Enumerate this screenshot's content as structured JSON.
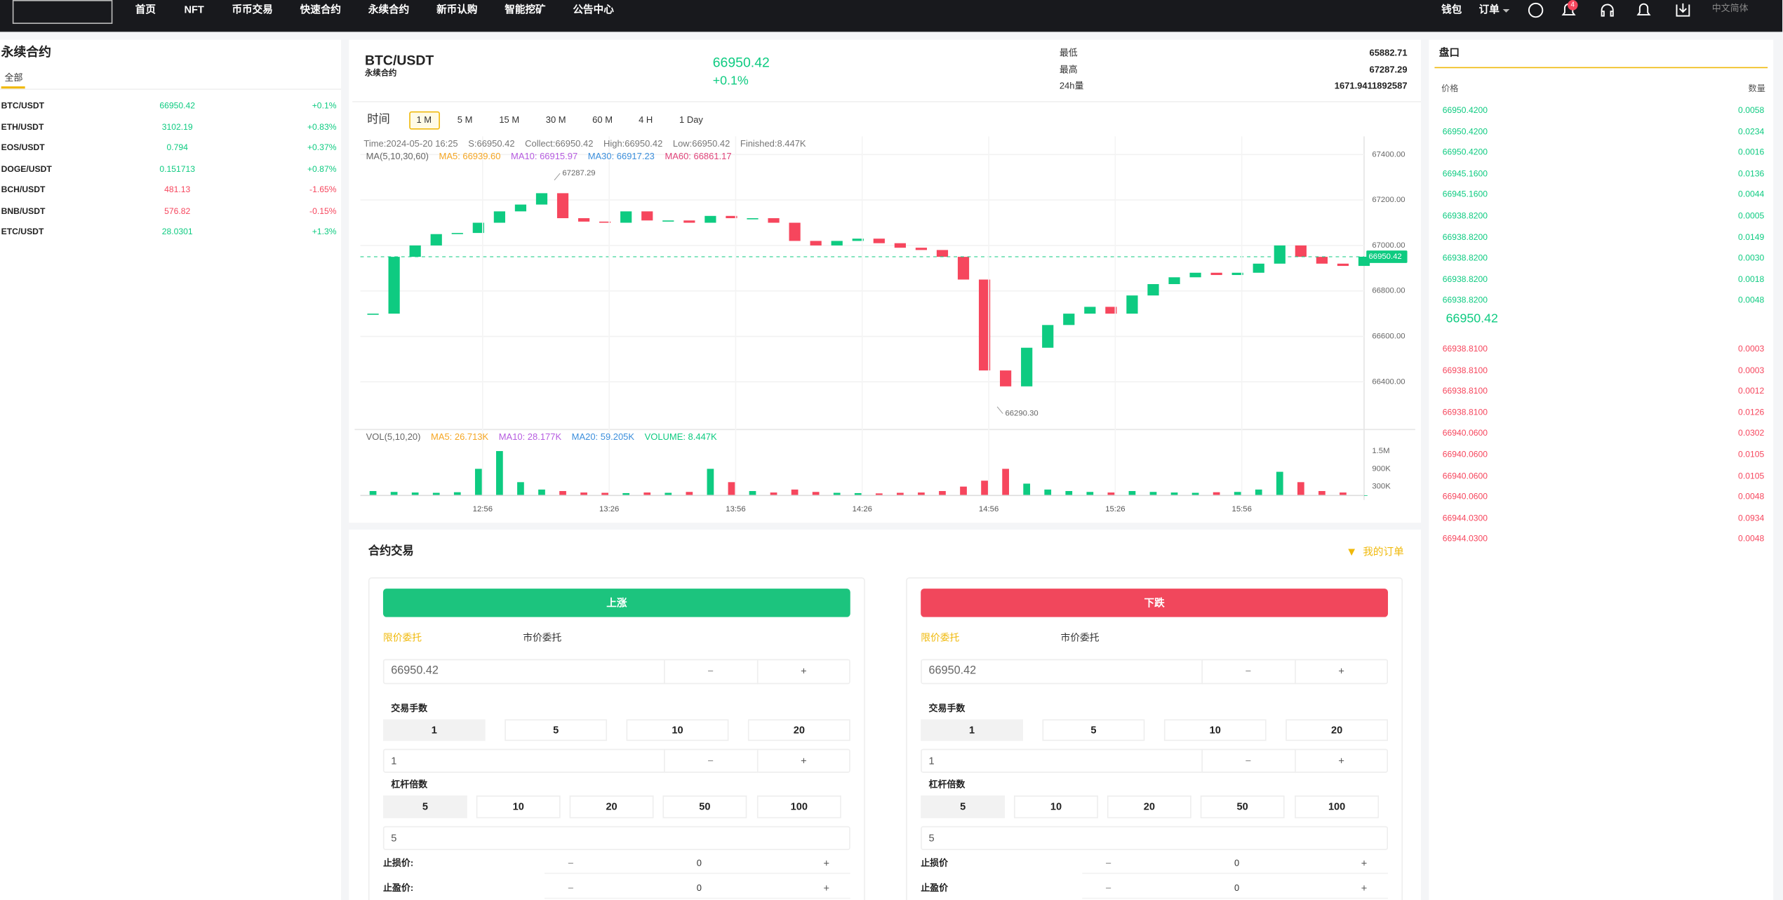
{
  "nav": {
    "items": [
      "首页",
      "NFT",
      "币币交易",
      "快速合约",
      "永续合约",
      "新币认购",
      "智能挖矿",
      "公告中心"
    ],
    "right": [
      "钱包",
      "订单"
    ],
    "badge": "4",
    "language": "中文简体"
  },
  "markets": {
    "title": "永续合约",
    "tab": "全部",
    "rows": [
      {
        "symbol": "BTC/USDT",
        "price": "66950.42",
        "change": "+0.1%"
      },
      {
        "symbol": "ETH/USDT",
        "price": "3102.19",
        "change": "+0.83%"
      },
      {
        "symbol": "EOS/USDT",
        "price": "0.794",
        "change": "+0.37%"
      },
      {
        "symbol": "DOGE/USDT",
        "price": "0.151713",
        "change": "+0.87%"
      },
      {
        "symbol": "BCH/USDT",
        "price": "481.13",
        "change": "-1.65%"
      },
      {
        "symbol": "BNB/USDT",
        "price": "576.82",
        "change": "-0.15%"
      },
      {
        "symbol": "ETC/USDT",
        "price": "28.0301",
        "change": "+1.3%"
      }
    ]
  },
  "ticker": {
    "symbol": "BTC/USDT",
    "subtitle": "永续合约",
    "price": "66950.42",
    "change": "+0.1%",
    "stats": [
      [
        "最低",
        "65882.71"
      ],
      [
        "最高",
        "67287.29"
      ],
      [
        "24h量",
        "1671.9411892587"
      ]
    ]
  },
  "intervals": {
    "items": [
      "时间",
      "1 M",
      "5 M",
      "15 M",
      "30 M",
      "60 M",
      "4 H",
      "1 Day"
    ],
    "selected": 1
  },
  "chart_data": [
    {
      "type": "candlestick",
      "info": [
        "Time:2024-05-20 16:25",
        "S:66950.42",
        "Collect:66950.42",
        "High:66950.42",
        "Low:66950.42",
        "Finished:8.447K"
      ],
      "legend": [
        {
          "text": "MA(5,10,30,60)",
          "color": "#666666"
        },
        {
          "text": "MA5: 66939.60",
          "color": "#f5a623"
        },
        {
          "text": "MA10: 66915.97",
          "color": "#b65ce0"
        },
        {
          "text": "MA30: 66917.23",
          "color": "#3c8fdc"
        },
        {
          "text": "MA60: 66861.17",
          "color": "#e0457b"
        }
      ],
      "x": [
        "12:30",
        "12:35",
        "12:40",
        "12:45",
        "12:50",
        "12:55",
        "13:00",
        "13:05",
        "13:10",
        "13:15",
        "13:20",
        "13:25",
        "13:30",
        "13:35",
        "13:40",
        "13:45",
        "13:50",
        "13:55",
        "14:00",
        "14:05",
        "14:10",
        "14:15",
        "14:20",
        "14:25",
        "14:30",
        "14:35",
        "14:40",
        "14:45",
        "14:50",
        "14:55",
        "15:00",
        "15:05",
        "15:10",
        "15:15",
        "15:20",
        "15:25",
        "15:30",
        "15:35",
        "15:40",
        "15:45",
        "15:50",
        "15:55",
        "16:00",
        "16:05",
        "16:10",
        "16:15",
        "16:20",
        "16:25"
      ],
      "xlim": [
        "12:27",
        "16:25"
      ],
      "series": [
        {
          "name": "BTC/USDT",
          "up_color": "#0ecb81",
          "down_color": "#f6465d",
          "values": [
            66700,
            66950,
            67000,
            67050,
            67055,
            67100,
            67150,
            67180,
            67230,
            67120,
            67105,
            67100,
            67150,
            67110,
            67110,
            67100,
            67130,
            67120,
            67120,
            67100,
            67020,
            67000,
            67020,
            67030,
            67010,
            66990,
            66980,
            66950,
            66850,
            66450,
            66380,
            66550,
            66650,
            66700,
            66730,
            66700,
            66780,
            66830,
            66860,
            66880,
            66870,
            66880,
            66920,
            67000,
            66950,
            66920,
            66910,
            66950.42
          ]
        }
      ],
      "ylim": [
        66190,
        67480
      ],
      "yticks": [
        {
          "value": 66400,
          "label": "66400.00"
        },
        {
          "value": 66600,
          "label": "66600.00"
        },
        {
          "value": 66800,
          "label": "66800.00"
        },
        {
          "value": 67000,
          "label": "67000.00"
        },
        {
          "value": 67200,
          "label": "67200.00"
        },
        {
          "value": 67400,
          "label": "67400.00"
        }
      ],
      "grid": true,
      "last_price": 66950.42,
      "annotations": [
        {
          "x": "13:13",
          "value": 67287.29
        },
        {
          "x": "14:58",
          "value": 66290.3,
          "label": "66290.30"
        }
      ]
    },
    {
      "type": "bar",
      "legend": [
        {
          "text": "VOL(5,10,20)",
          "color": "#666666"
        },
        {
          "text": "MA5: 26.713K",
          "color": "#f5a623"
        },
        {
          "text": "MA10: 28.177K",
          "color": "#b65ce0"
        },
        {
          "text": "MA20: 59.205K",
          "color": "#3c8fdc"
        },
        {
          "text": "VOLUME: 8.447K",
          "color": "#0ecb81"
        }
      ],
      "x": [
        "12:30",
        "12:35",
        "12:40",
        "12:45",
        "12:50",
        "12:55",
        "13:00",
        "13:05",
        "13:10",
        "13:15",
        "13:20",
        "13:25",
        "13:30",
        "13:35",
        "13:40",
        "13:45",
        "13:50",
        "13:55",
        "14:00",
        "14:05",
        "14:10",
        "14:15",
        "14:20",
        "14:25",
        "14:30",
        "14:35",
        "14:40",
        "14:45",
        "14:50",
        "14:55",
        "15:00",
        "15:05",
        "15:10",
        "15:15",
        "15:20",
        "15:25",
        "15:30",
        "15:35",
        "15:40",
        "15:45",
        "15:50",
        "15:55",
        "16:00",
        "16:05",
        "16:10",
        "16:15",
        "16:20",
        "16:25"
      ],
      "xlim": [
        "12:27",
        "16:25"
      ],
      "xticks": [
        "12:56",
        "13:26",
        "13:56",
        "14:26",
        "14:56",
        "15:26",
        "15:56"
      ],
      "values": [
        150000,
        120000,
        100000,
        90000,
        110000,
        900000,
        1500000,
        450000,
        200000,
        150000,
        100000,
        90000,
        80000,
        100000,
        90000,
        120000,
        900000,
        450000,
        150000,
        100000,
        200000,
        120000,
        90000,
        80000,
        70000,
        90000,
        100000,
        150000,
        300000,
        500000,
        900000,
        400000,
        200000,
        150000,
        120000,
        100000,
        150000,
        120000,
        100000,
        90000,
        110000,
        120000,
        200000,
        800000,
        450000,
        150000,
        100000,
        8447
      ],
      "ylim": [
        0,
        2150000
      ],
      "yticks": [
        {
          "value": 300000,
          "label": "300K"
        },
        {
          "value": 900000,
          "label": "900K"
        },
        {
          "value": 1500000,
          "label": "1.5M"
        }
      ]
    }
  ],
  "order_book": {
    "title": "盘口",
    "headers": [
      "价格",
      "数量"
    ],
    "bids": [
      [
        "66950.4200",
        "0.0058"
      ],
      [
        "66950.4200",
        "0.0234"
      ],
      [
        "66950.4200",
        "0.0016"
      ],
      [
        "66945.1600",
        "0.0136"
      ],
      [
        "66945.1600",
        "0.0044"
      ],
      [
        "66938.8200",
        "0.0005"
      ],
      [
        "66938.8200",
        "0.0149"
      ],
      [
        "66938.8200",
        "0.0030"
      ],
      [
        "66938.8200",
        "0.0018"
      ],
      [
        "66938.8200",
        "0.0048"
      ]
    ],
    "mid": "66950.42",
    "asks": [
      [
        "66938.8100",
        "0.0003"
      ],
      [
        "66938.8100",
        "0.0003"
      ],
      [
        "66938.8100",
        "0.0012"
      ],
      [
        "66938.8100",
        "0.0126"
      ],
      [
        "66940.0600",
        "0.0302"
      ],
      [
        "66940.0600",
        "0.0105"
      ],
      [
        "66940.0600",
        "0.0105"
      ],
      [
        "66940.0600",
        "0.0048"
      ],
      [
        "66944.0300",
        "0.0934"
      ],
      [
        "66944.0300",
        "0.0048"
      ]
    ]
  },
  "trade": {
    "title": "合约交易",
    "my_orders": "我的订单",
    "form": {
      "tabs": [
        "限价委托",
        "市价委托"
      ],
      "price": "66950.42",
      "minus": "−",
      "plus": "+",
      "lots_label": "交易手数",
      "lots": [
        "1",
        "5",
        "10",
        "20"
      ],
      "lots_input": "1",
      "leverage_label": "杠杆倍数",
      "leverage": [
        "5",
        "10",
        "20",
        "50",
        "100"
      ],
      "leverage_input": "5",
      "stop_value": "0"
    },
    "sides": [
      {
        "action": "上涨",
        "color": "#1cc47e",
        "stop_loss": "止损价:",
        "take_profit": "止盈价:"
      },
      {
        "action": "下跌",
        "color": "#f1475c",
        "stop_loss": "止损价",
        "take_profit": "止盈价"
      }
    ]
  }
}
